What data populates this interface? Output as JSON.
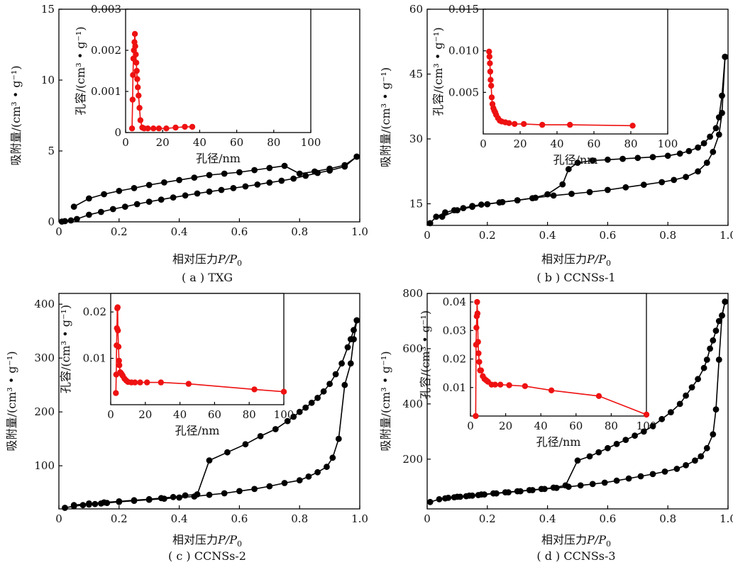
{
  "chart_data": [
    {
      "type": "scatter",
      "caption": "( a ) TXG",
      "xlabel_prefix": "相对压力",
      "xlabel_var": "P/P",
      "xlabel_sub": "0",
      "ylabel": "吸附量/(cm³ • g⁻¹)",
      "xlim": [
        0,
        1.0
      ],
      "ylim": [
        0,
        15
      ],
      "xticks": [
        "0",
        "0.2",
        "0.4",
        "0.6",
        "0.8",
        "1.0"
      ],
      "yticks": [
        "0",
        "5",
        "10",
        "15"
      ],
      "color": "#000000",
      "adsorption": {
        "x": [
          0.01,
          0.02,
          0.04,
          0.06,
          0.1,
          0.14,
          0.18,
          0.22,
          0.26,
          0.3,
          0.34,
          0.38,
          0.42,
          0.46,
          0.5,
          0.54,
          0.58,
          0.62,
          0.66,
          0.7,
          0.74,
          0.78,
          0.82,
          0.86,
          0.9,
          0.95,
          0.99
        ],
        "y": [
          0.02,
          0.05,
          0.1,
          0.2,
          0.5,
          0.7,
          0.9,
          1.07,
          1.25,
          1.42,
          1.57,
          1.72,
          1.86,
          2.0,
          2.13,
          2.25,
          2.38,
          2.5,
          2.63,
          2.77,
          2.9,
          3.05,
          3.25,
          3.45,
          3.62,
          3.9,
          4.6
        ]
      },
      "desorption": {
        "x": [
          0.99,
          0.95,
          0.9,
          0.85,
          0.8,
          0.75,
          0.7,
          0.65,
          0.6,
          0.55,
          0.5,
          0.45,
          0.4,
          0.35,
          0.3,
          0.25,
          0.2,
          0.15,
          0.1,
          0.05
        ],
        "y": [
          4.6,
          4.0,
          3.75,
          3.55,
          3.4,
          3.95,
          3.8,
          3.65,
          3.5,
          3.4,
          3.3,
          3.12,
          2.95,
          2.78,
          2.6,
          2.38,
          2.18,
          1.95,
          1.65,
          1.07
        ]
      },
      "inset": {
        "xlabel": "孔径/nm",
        "ylabel": "孔容/(cm³ • g⁻¹)",
        "xlim": [
          0,
          100
        ],
        "ylim": [
          0,
          0.003
        ],
        "xticks": [
          "0",
          "20",
          "40",
          "60",
          "80",
          "100"
        ],
        "yticks": [
          "0",
          "0.001",
          "0.002",
          "0.003"
        ],
        "color": "#ee1111",
        "x": [
          3.5,
          3.8,
          4.0,
          4.2,
          4.5,
          4.8,
          5.0,
          5.2,
          5.5,
          5.8,
          6.0,
          6.3,
          6.6,
          7.0,
          7.5,
          8.0,
          9.0,
          10,
          12,
          15,
          18,
          22,
          27,
          32,
          36
        ],
        "y": [
          0.0001,
          0.0008,
          0.0014,
          0.0018,
          0.002,
          0.0022,
          0.0024,
          0.0021,
          0.0019,
          0.0017,
          0.0015,
          0.0013,
          0.0011,
          0.0009,
          0.0006,
          0.0003,
          0.00012,
          0.0001,
          0.0001,
          0.0001,
          0.0001,
          0.0001,
          0.00012,
          0.00014,
          0.00014
        ]
      }
    },
    {
      "type": "scatter",
      "caption": "( b ) CCNSs-1",
      "xlabel_prefix": "相对压力",
      "xlabel_var": "P/P",
      "xlabel_sub": "0",
      "ylabel": "吸附量/(cm³ • g⁻¹)",
      "xlim": [
        0,
        1.0
      ],
      "ylim": [
        10,
        60
      ],
      "xticks": [
        "0",
        "0.2",
        "0.4",
        "0.6",
        "0.8",
        "1.0"
      ],
      "yticks": [
        "15",
        "30",
        "45",
        "60"
      ],
      "color": "#000000",
      "adsorption": {
        "x": [
          0.01,
          0.03,
          0.06,
          0.09,
          0.12,
          0.15,
          0.18,
          0.24,
          0.3,
          0.36,
          0.42,
          0.48,
          0.54,
          0.6,
          0.66,
          0.72,
          0.78,
          0.82,
          0.86,
          0.9,
          0.93,
          0.95,
          0.97,
          0.98,
          0.99
        ],
        "y": [
          10.5,
          12.0,
          13.0,
          13.5,
          14.0,
          14.5,
          14.8,
          15.3,
          15.8,
          16.4,
          16.9,
          17.3,
          17.7,
          18.2,
          18.8,
          19.4,
          20.0,
          20.5,
          21.2,
          22.5,
          24.5,
          27.0,
          31.0,
          36.0,
          49.0
        ]
      },
      "desorption": {
        "x": [
          0.99,
          0.98,
          0.97,
          0.96,
          0.94,
          0.92,
          0.9,
          0.87,
          0.84,
          0.8,
          0.75,
          0.7,
          0.65,
          0.6,
          0.55,
          0.5,
          0.47,
          0.45,
          0.4,
          0.35,
          0.3,
          0.25,
          0.2,
          0.15,
          0.1,
          0.05
        ],
        "y": [
          49.0,
          40.0,
          35.0,
          32.5,
          30.5,
          29.0,
          28.0,
          27.2,
          26.6,
          26.1,
          25.8,
          25.6,
          25.4,
          25.2,
          25.0,
          24.5,
          23.0,
          19.5,
          17.2,
          16.3,
          15.8,
          15.4,
          14.9,
          14.3,
          13.5,
          12.0
        ]
      },
      "inset": {
        "xlabel": "孔径/nm",
        "ylabel": "孔容/(cm³ • g⁻¹)",
        "xlim": [
          0,
          100
        ],
        "ylim": [
          0,
          0.015
        ],
        "xticks": [
          "0",
          "20",
          "40",
          "60",
          "80",
          "100"
        ],
        "yticks": [
          "0.005",
          "0.010",
          "0.015"
        ],
        "color": "#ee1111",
        "x": [
          3.2,
          3.4,
          3.6,
          3.8,
          4.0,
          4.3,
          4.6,
          5.0,
          5.5,
          6.0,
          6.5,
          7.0,
          8.0,
          9.0,
          10,
          12,
          14,
          17,
          22,
          32,
          47,
          81
        ],
        "y": [
          0.0099,
          0.0093,
          0.0085,
          0.0075,
          0.0065,
          0.0058,
          0.0044,
          0.0036,
          0.0031,
          0.0028,
          0.0026,
          0.0023,
          0.0019,
          0.0016,
          0.0015,
          0.0014,
          0.0013,
          0.0012,
          0.0012,
          0.0011,
          0.0011,
          0.001
        ]
      }
    },
    {
      "type": "scatter",
      "caption": "( c ) CCNSs-2",
      "xlabel_prefix": "相对压力",
      "xlabel_var": "P/P",
      "xlabel_sub": "0",
      "ylabel": "吸附量/(cm³ • g⁻¹)",
      "xlim": [
        0,
        1.0
      ],
      "ylim": [
        20,
        420
      ],
      "xticks": [
        "0",
        "0.2",
        "0.4",
        "0.6",
        "0.8",
        "1.0"
      ],
      "yticks": [
        "100",
        "200",
        "300",
        "400"
      ],
      "color": "#000000",
      "adsorption": {
        "x": [
          0.02,
          0.05,
          0.08,
          0.1,
          0.12,
          0.14,
          0.16,
          0.2,
          0.25,
          0.3,
          0.35,
          0.4,
          0.45,
          0.5,
          0.55,
          0.6,
          0.65,
          0.7,
          0.75,
          0.8,
          0.83,
          0.86,
          0.89,
          0.91,
          0.93,
          0.95,
          0.97,
          0.98,
          0.99
        ],
        "y": [
          22,
          25,
          27,
          28,
          29,
          30,
          31,
          33,
          35,
          37,
          39,
          41,
          43,
          46,
          49,
          53,
          57,
          62,
          68,
          73,
          80,
          88,
          98,
          115,
          150,
          250,
          290,
          335,
          370
        ]
      },
      "desorption": {
        "x": [
          0.99,
          0.98,
          0.97,
          0.96,
          0.94,
          0.92,
          0.9,
          0.88,
          0.86,
          0.84,
          0.82,
          0.8,
          0.78,
          0.76,
          0.72,
          0.67,
          0.62,
          0.56,
          0.5,
          0.46,
          0.42,
          0.38,
          0.34,
          0.3,
          0.25,
          0.2,
          0.15,
          0.1,
          0.05
        ],
        "y": [
          370,
          352,
          335,
          320,
          290,
          270,
          252,
          238,
          226,
          217,
          208,
          200,
          191,
          183,
          168,
          155,
          140,
          125,
          110,
          47,
          45,
          42,
          40,
          38,
          36,
          34,
          32,
          30,
          27
        ]
      },
      "inset": {
        "xlabel": "孔径/nm",
        "ylabel": "孔容/(cm³ • g⁻¹)",
        "xlim": [
          0,
          100
        ],
        "ylim": [
          0,
          0.024
        ],
        "xticks": [
          "0",
          "20",
          "40",
          "60",
          "80",
          "100"
        ],
        "yticks": [
          "0.01",
          "0.02"
        ],
        "color": "#ee1111",
        "x": [
          3.0,
          3.2,
          3.4,
          3.6,
          3.8,
          4.0,
          4.2,
          4.5,
          4.8,
          5.0,
          5.5,
          6.0,
          6.5,
          7.0,
          8.0,
          9.0,
          10,
          12,
          14,
          17,
          21,
          29,
          45,
          83,
          100
        ],
        "y": [
          0.0025,
          0.0065,
          0.0128,
          0.0165,
          0.0208,
          0.021,
          0.016,
          0.0125,
          0.0095,
          0.0085,
          0.007,
          0.0068,
          0.0065,
          0.0062,
          0.0056,
          0.0052,
          0.0049,
          0.0048,
          0.0048,
          0.0048,
          0.0048,
          0.0048,
          0.0045,
          0.0033,
          0.0028
        ]
      }
    },
    {
      "type": "scatter",
      "caption": "( d ) CCNSs-3",
      "xlabel_prefix": "相对压力",
      "xlabel_var": "P/P",
      "xlabel_sub": "0",
      "ylabel": "吸附量/(cm³ • g⁻¹)",
      "xlim": [
        0,
        1.0
      ],
      "ylim": [
        20,
        800
      ],
      "xticks": [
        "0",
        "0.2",
        "0.4",
        "0.6",
        "0.8",
        "1.0"
      ],
      "yticks": [
        "200",
        "400",
        "600",
        "800"
      ],
      "color": "#000000",
      "adsorption": {
        "x": [
          0.01,
          0.04,
          0.07,
          0.09,
          0.11,
          0.13,
          0.15,
          0.17,
          0.19,
          0.23,
          0.27,
          0.31,
          0.35,
          0.39,
          0.43,
          0.47,
          0.51,
          0.55,
          0.59,
          0.63,
          0.67,
          0.71,
          0.75,
          0.79,
          0.83,
          0.86,
          0.89,
          0.91,
          0.93,
          0.95,
          0.96,
          0.97,
          0.98,
          0.99
        ],
        "y": [
          45,
          55,
          60,
          62,
          64,
          66,
          68,
          70,
          72,
          76,
          80,
          84,
          88,
          92,
          96,
          100,
          105,
          110,
          115,
          122,
          130,
          138,
          146,
          155,
          165,
          178,
          195,
          210,
          240,
          290,
          380,
          560,
          720,
          770
        ]
      },
      "desorption": {
        "x": [
          0.99,
          0.98,
          0.97,
          0.96,
          0.95,
          0.94,
          0.93,
          0.92,
          0.9,
          0.88,
          0.86,
          0.84,
          0.81,
          0.78,
          0.75,
          0.72,
          0.69,
          0.66,
          0.63,
          0.6,
          0.57,
          0.54,
          0.5,
          0.46,
          0.42,
          0.38,
          0.34,
          0.3,
          0.26,
          0.22,
          0.18,
          0.14,
          0.1,
          0.06
        ],
        "y": [
          770,
          720,
          700,
          665,
          630,
          600,
          560,
          530,
          490,
          460,
          430,
          400,
          370,
          345,
          320,
          300,
          285,
          270,
          255,
          240,
          225,
          210,
          195,
          105,
          97,
          92,
          88,
          84,
          80,
          76,
          72,
          68,
          64,
          58
        ]
      },
      "inset": {
        "xlabel": "孔径/nm",
        "ylabel": "孔容/(cm³ • g⁻¹)",
        "xlim": [
          0,
          100
        ],
        "ylim": [
          0,
          0.043
        ],
        "xticks": [
          "0",
          "20",
          "40",
          "60",
          "80",
          "100"
        ],
        "yticks": [
          "0.01",
          "0.02",
          "0.03",
          "0.04"
        ],
        "color": "#ee1111",
        "x": [
          3.0,
          3.2,
          3.4,
          3.6,
          3.8,
          4.0,
          4.3,
          4.6,
          5.0,
          5.5,
          6.0,
          7.0,
          8.0,
          9.0,
          10,
          12,
          14,
          17,
          22,
          31,
          46,
          73,
          100
        ],
        "y": [
          0.0,
          0.025,
          0.031,
          0.035,
          0.04,
          0.036,
          0.026,
          0.022,
          0.019,
          0.016,
          0.016,
          0.014,
          0.013,
          0.0125,
          0.012,
          0.011,
          0.011,
          0.011,
          0.0108,
          0.0105,
          0.009,
          0.007,
          0.0005
        ]
      }
    }
  ]
}
